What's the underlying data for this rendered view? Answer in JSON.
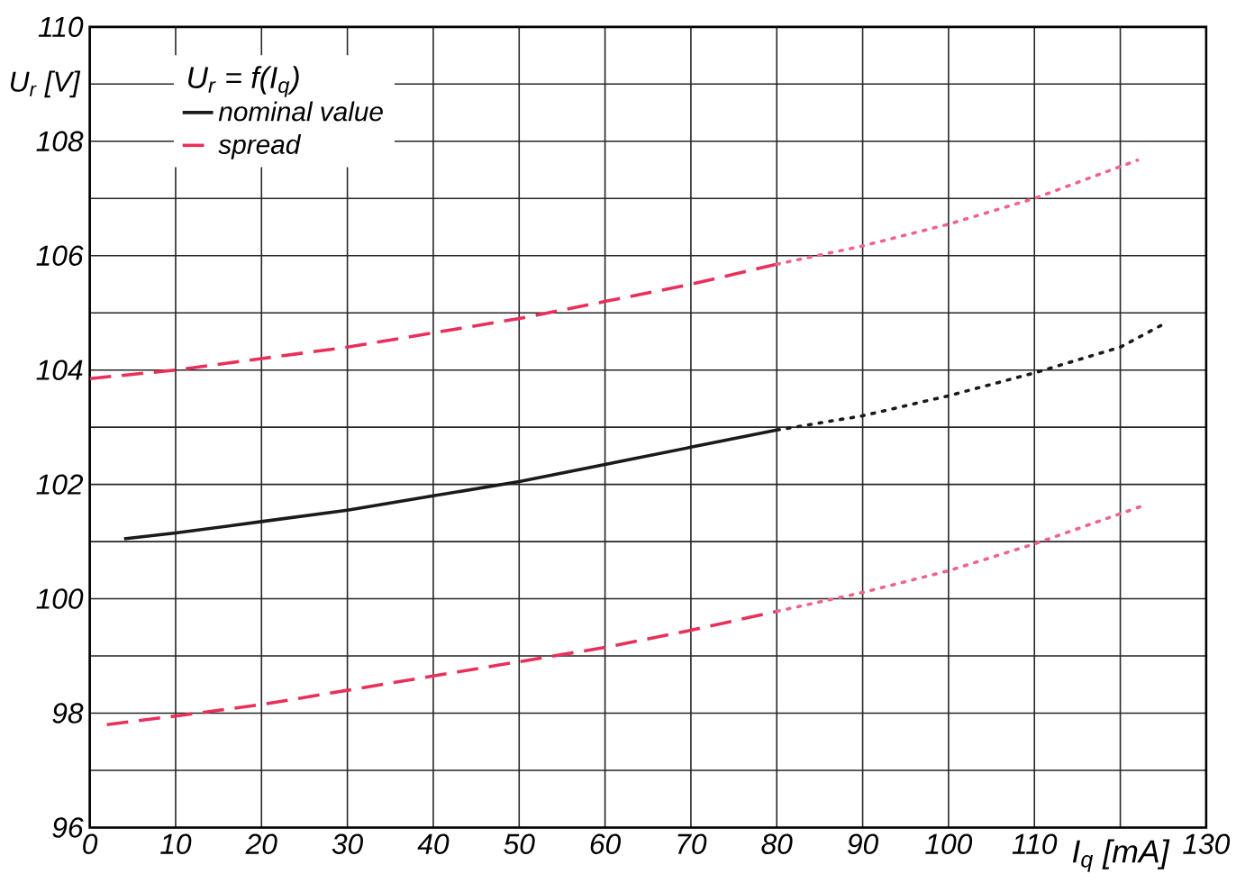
{
  "chart_data": {
    "type": "line",
    "xlabel": "I$_{q}$ [mA]",
    "ylabel": "U$_{r}$ [V]",
    "legend_title": "U$_{r}$ = f(I$_{q}$)",
    "xlim": [
      0,
      130
    ],
    "ylim": [
      96,
      110
    ],
    "xticks": [
      0,
      10,
      20,
      30,
      40,
      50,
      60,
      70,
      80,
      90,
      100,
      110,
      {
        "value": 120,
        "label": null
      },
      130
    ],
    "yticks": [
      96,
      {
        "value": 97,
        "label": null
      },
      98,
      {
        "value": 99,
        "label": null
      },
      100,
      {
        "value": 101,
        "label": null
      },
      102,
      {
        "value": 103,
        "label": null
      },
      104,
      {
        "value": 105,
        "label": null
      },
      106,
      {
        "value": 107,
        "label": null
      },
      108,
      {
        "value": 109,
        "label": null
      },
      110
    ],
    "grid": true,
    "legend": "top left",
    "series": [
      {
        "name": "nominal value",
        "color": "#1a1a1a",
        "line_style": "solid",
        "x": [
          4,
          10,
          20,
          30,
          40,
          50,
          60,
          70,
          80
        ],
        "values": [
          101.05,
          101.15,
          101.35,
          101.55,
          101.8,
          102.05,
          102.35,
          102.65,
          102.95
        ]
      },
      {
        "color": "#1a1a1a",
        "line_style": "dotted",
        "x": [
          80,
          90,
          100,
          110,
          120,
          125
        ],
        "values": [
          102.95,
          103.2,
          103.55,
          103.95,
          104.4,
          104.8
        ]
      },
      {
        "name": "spread",
        "color": "#e8305a",
        "line_style": "dashed",
        "x": [
          0,
          10,
          20,
          30,
          40,
          50,
          60,
          70,
          80
        ],
        "values": [
          103.85,
          104.0,
          104.2,
          104.4,
          104.65,
          104.9,
          105.2,
          105.5,
          105.85
        ]
      },
      {
        "color": "#f06488",
        "line_style": "dotted",
        "x": [
          80,
          90,
          100,
          110,
          122
        ],
        "values": [
          105.85,
          106.17,
          106.55,
          107.0,
          107.67
        ]
      },
      {
        "color": "#e8305a",
        "line_style": "dashed",
        "x": [
          2,
          10,
          20,
          30,
          40,
          50,
          60,
          70,
          80
        ],
        "values": [
          97.8,
          97.95,
          98.15,
          98.4,
          98.65,
          98.9,
          99.15,
          99.45,
          99.78
        ]
      },
      {
        "color": "#f06488",
        "line_style": "dotted",
        "x": [
          80,
          90,
          100,
          110,
          122.5
        ],
        "values": [
          99.78,
          100.11,
          100.49,
          100.96,
          101.62
        ]
      }
    ]
  }
}
